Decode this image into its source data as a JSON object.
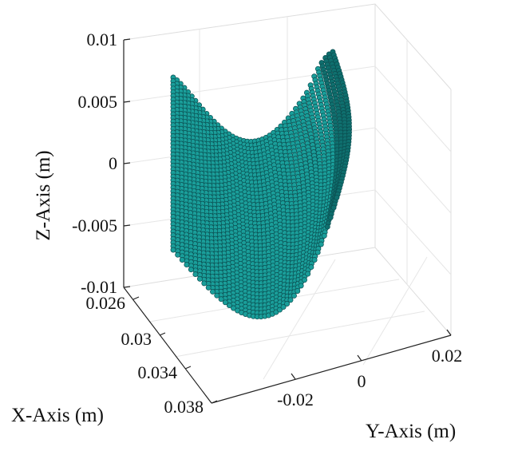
{
  "chart_data": {
    "type": "scatter3d",
    "title": "",
    "xlabel": "X-Axis (m)",
    "ylabel": "Y-Axis (m)",
    "zlabel": "Z-Axis (m)",
    "xlim": [
      0.026,
      0.038
    ],
    "ylim": [
      -0.03,
      0.025
    ],
    "zlim": [
      -0.01,
      0.01
    ],
    "x_ticks": [
      "0.026",
      "0.03",
      "0.034",
      "0.038"
    ],
    "x_tick_values": [
      0.026,
      0.03,
      0.034,
      0.038
    ],
    "y_ticks": [
      "-0.02",
      "0",
      "0.02"
    ],
    "y_tick_values": [
      -0.02,
      0,
      0.02
    ],
    "z_ticks": [
      "0.01",
      "0.005",
      "0",
      "-0.005",
      "-0.01"
    ],
    "z_tick_values": [
      0.01,
      0.005,
      0,
      -0.005,
      -0.01
    ],
    "grid": true,
    "marker_color": "#1a9e9a",
    "marker_edge_color": "#0b4e50",
    "surface": {
      "description_values": "curved blade-like surface of spherical markers",
      "u_points": 44,
      "v_points": 48,
      "corners": {
        "top_left": {
          "x": 0.03,
          "y": -0.024,
          "z": 0.0075
        },
        "top_right": {
          "x": 0.03,
          "y": 0.01,
          "z": 0.0092
        },
        "bottom_left": {
          "x": 0.033,
          "y": -0.028,
          "z": -0.0065
        },
        "bottom_right": {
          "x": 0.034,
          "y": 0.002,
          "z": -0.0098
        }
      }
    }
  }
}
